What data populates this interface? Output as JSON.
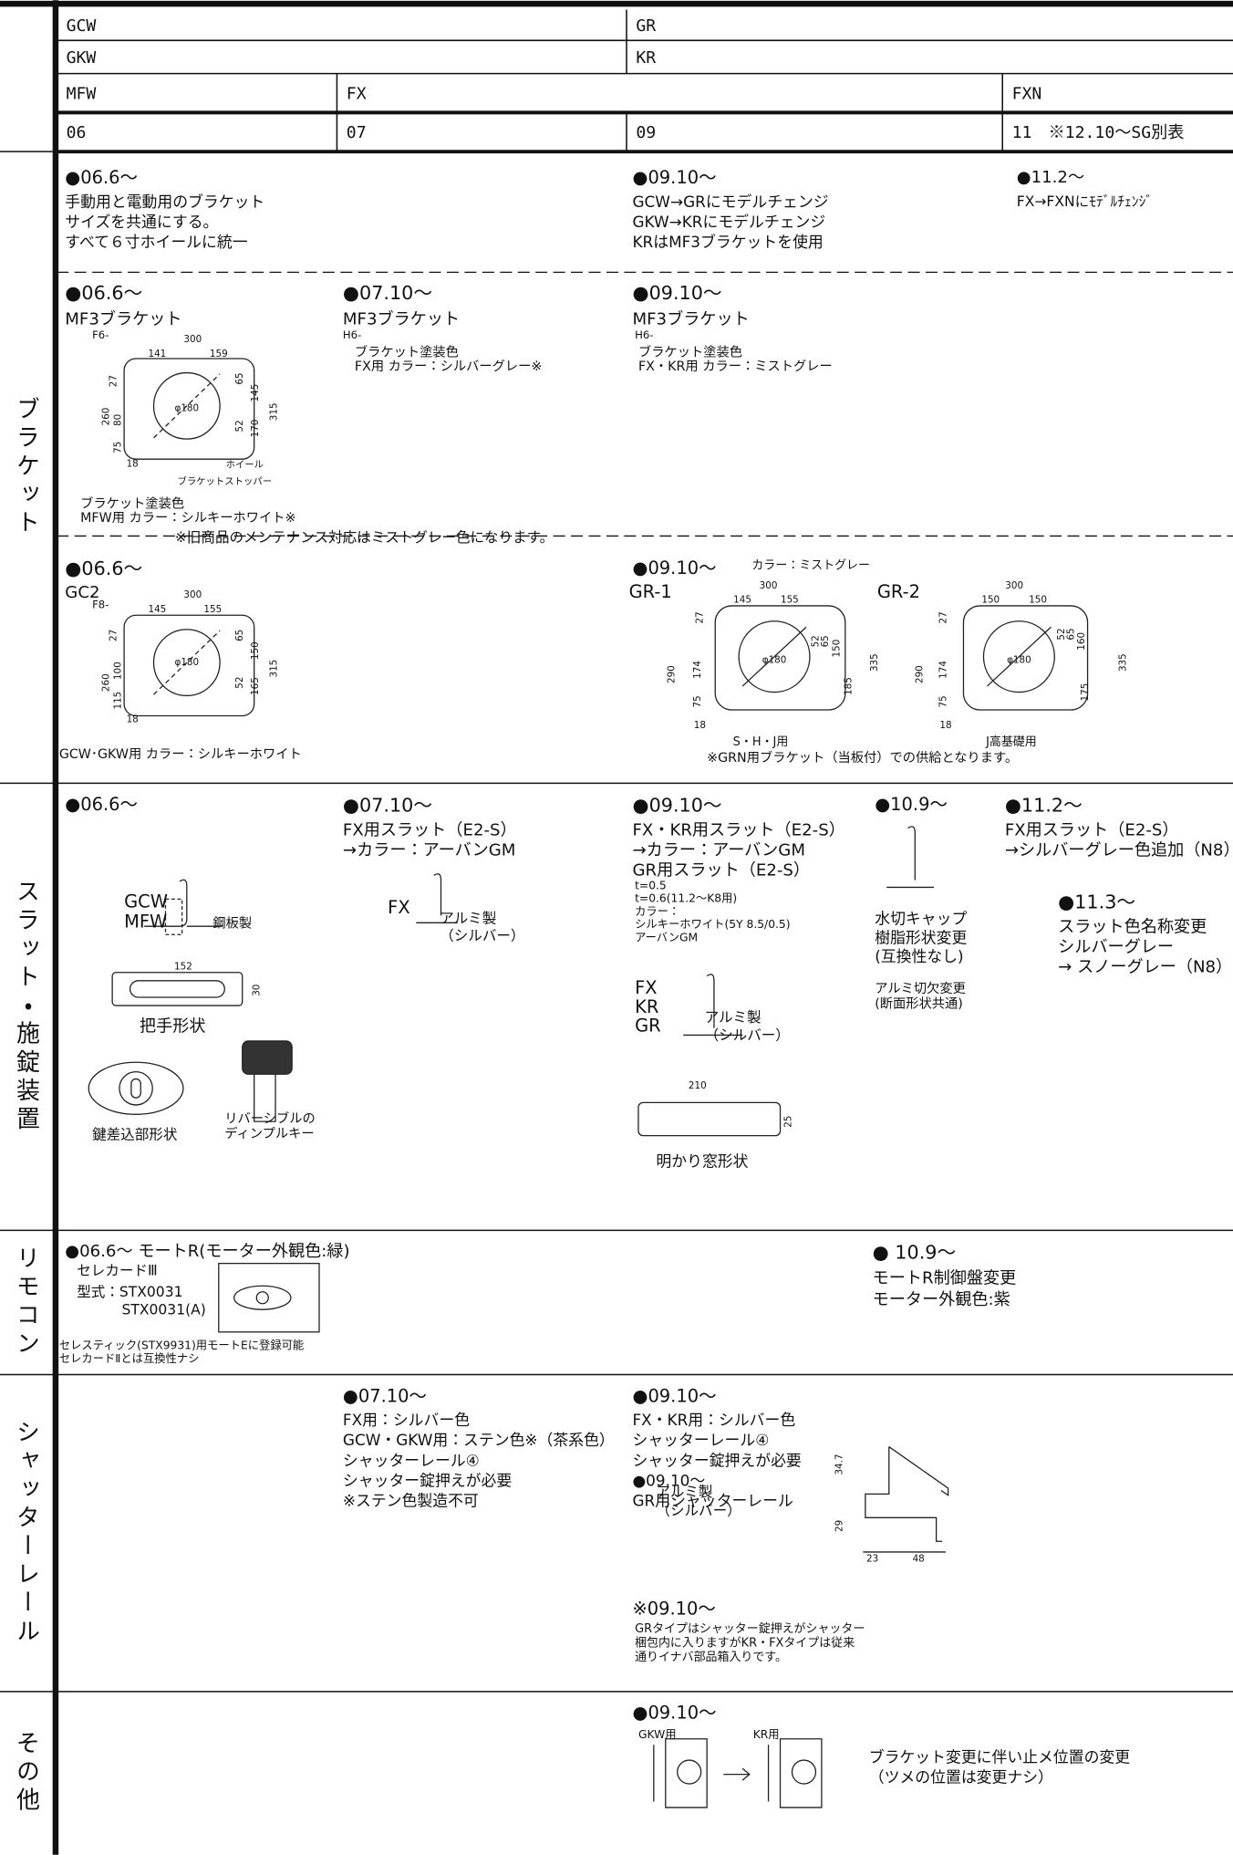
{
  "header": {
    "rows": [
      [
        "GCW",
        "GR"
      ],
      [
        "GKW",
        "KR"
      ],
      [
        "MFW",
        "FX",
        "FXN"
      ],
      [
        "06",
        "07",
        "09",
        "11　※12.10〜SG別表"
      ]
    ]
  },
  "sections": [
    {
      "label": "ブラケット",
      "blocks": [
        {
          "lines": [
            "●06.6〜",
            "手動用と電動用のブラケット",
            "サイズを共通にする。",
            "すべて６寸ホイールに統一"
          ]
        },
        {
          "lines": [
            "●09.10〜",
            "GCW→GRにモデルチェンジ",
            "GKW→KRにモデルチェンジ",
            "KRはMF3ブラケットを使用"
          ]
        },
        {
          "lines": [
            "●11.2〜",
            "FX→FXNにﾓﾃﾞﾙﾁｪﾝｼﾞ"
          ]
        },
        {
          "lines": [
            "●06.6〜",
            "MF3ブラケット"
          ]
        },
        {
          "lines": [
            "F6-"
          ]
        },
        {
          "lines": [
            "●07.10〜",
            "MF3ブラケット"
          ]
        },
        {
          "lines": [
            "H6-"
          ]
        },
        {
          "lines": [
            "ブラケット塗装色",
            "FX用 カラー：シルバーグレー※"
          ]
        },
        {
          "lines": [
            "●09.10〜",
            "MF3ブラケット"
          ]
        },
        {
          "lines": [
            "H6-"
          ]
        },
        {
          "lines": [
            "ブラケット塗装色",
            "FX・KR用 カラー：ミストグレー"
          ]
        },
        {
          "lines": [
            "ブラケット塗装色",
            "MFW用 カラー：シルキーホワイト※"
          ]
        },
        {
          "lines": [
            "※旧商品のメンテナンス対応はミストグレー色になります。"
          ]
        },
        {
          "lines": [
            "●06.6〜",
            "GC2"
          ]
        },
        {
          "lines": [
            "F8-"
          ]
        },
        {
          "lines": [
            "GCW･GKW用 カラー：シルキーホワイト"
          ]
        },
        {
          "lines": [
            "●09.10〜"
          ]
        },
        {
          "lines": [
            "カラー：ミストグレー"
          ]
        },
        {
          "lines": [
            "GR-1"
          ]
        },
        {
          "lines": [
            "GR-2"
          ]
        },
        {
          "lines": [
            "S・H・J用"
          ]
        },
        {
          "lines": [
            "J高基礎用"
          ]
        },
        {
          "lines": [
            "※GRN用ブラケット（当板付）での供給となります。"
          ]
        }
      ],
      "diagrams": [
        {
          "dims": [
            "300",
            "141",
            "159",
            "27",
            "65",
            "145",
            "260",
            "80",
            "75",
            "52",
            "170",
            "315",
            "18",
            "φ180",
            "ホイール",
            "ブラケットストッパー"
          ]
        },
        {
          "dims": [
            "300",
            "145",
            "155",
            "27",
            "65",
            "150",
            "260",
            "100",
            "115",
            "52",
            "165",
            "315",
            "18",
            "φ180"
          ]
        },
        {
          "dims": [
            "300",
            "145",
            "155",
            "27",
            "52",
            "65",
            "150",
            "290",
            "174",
            "185",
            "335",
            "75",
            "18",
            "φ180"
          ]
        },
        {
          "dims": [
            "300",
            "150",
            "150",
            "27",
            "52",
            "65",
            "160",
            "290",
            "174",
            "175",
            "335",
            "75",
            "18",
            "φ180"
          ]
        }
      ]
    },
    {
      "label": "スラット・施錠装置",
      "blocks": [
        {
          "lines": [
            "●06.6〜"
          ]
        },
        {
          "lines": [
            "GCW",
            "MFW"
          ]
        },
        {
          "lines": [
            "鋼板製"
          ]
        },
        {
          "lines": [
            "把手形状"
          ]
        },
        {
          "lines": [
            "鍵差込部形状"
          ]
        },
        {
          "lines": [
            "リバーシブルの",
            "ディンプルキー"
          ]
        },
        {
          "lines": [
            "●07.10〜",
            "FX用スラット（E2-S）",
            "→カラー：アーバンGM"
          ]
        },
        {
          "lines": [
            "FX"
          ]
        },
        {
          "lines": [
            "アルミ製",
            "（シルバー）"
          ]
        },
        {
          "lines": [
            "●09.10〜",
            "FX・KR用スラット（E2-S）",
            "→カラー：アーバンGM",
            "GR用スラット（E2-S）"
          ]
        },
        {
          "lines": [
            "t=0.5",
            "t=0.6(11.2〜K8用)",
            "カラー：",
            "シルキーホワイト(5Y 8.5/0.5)",
            "アーバンGM"
          ]
        },
        {
          "lines": [
            "FX",
            "KR",
            "GR"
          ]
        },
        {
          "lines": [
            "アルミ製",
            "（シルバー）"
          ]
        },
        {
          "lines": [
            "明かり窓形状"
          ]
        },
        {
          "lines": [
            "●10.9〜"
          ]
        },
        {
          "lines": [
            "水切キャップ",
            "樹脂形状変更",
            "(互換性なし)"
          ]
        },
        {
          "lines": [
            "アルミ切欠変更",
            "(断面形状共通)"
          ]
        },
        {
          "lines": [
            "●11.2〜",
            "FX用スラット（E2-S）",
            "→シルバーグレー色追加（N8）"
          ]
        },
        {
          "lines": [
            "●11.3〜",
            "スラット色名称変更",
            "シルバーグレー",
            "→ スノーグレー（N8）"
          ]
        }
      ],
      "diagrams": [
        {
          "dims": [
            "152",
            "30"
          ]
        },
        {
          "dims": [
            "210",
            "25"
          ]
        }
      ]
    },
    {
      "label": "リモコン",
      "blocks": [
        {
          "lines": [
            "●06.6〜 モートR(モーター外観色:緑)"
          ]
        },
        {
          "lines": [
            "セレカードⅢ"
          ]
        },
        {
          "lines": [
            "型式：STX0031"
          ]
        },
        {
          "lines": [
            "STX0031(A)"
          ]
        },
        {
          "lines": [
            "セレスティック(STX9931)用モートEに登録可能",
            "セレカードⅡとは互換性ナシ"
          ]
        },
        {
          "lines": [
            "● 10.9〜",
            "モートR制御盤変更",
            "モーター外観色:紫"
          ]
        }
      ],
      "diagrams": []
    },
    {
      "label": "シャッターレール",
      "blocks": [
        {
          "lines": [
            "●07.10〜",
            "FX用：シルバー色",
            "GCW・GKW用：ステン色※（茶系色）",
            "シャッターレール④",
            "シャッター錠押えが必要"
          ]
        },
        {
          "lines": [
            "※ステン色製造不可"
          ]
        },
        {
          "lines": [
            "●09.10〜",
            "FX・KR用：シルバー色",
            "シャッターレール④",
            "シャッター錠押えが必要",
            "●09.10〜",
            "GR用シャッターレール"
          ]
        },
        {
          "lines": [
            "アルミ製",
            "（シルバー）"
          ]
        },
        {
          "lines": [
            "※09.10〜"
          ]
        },
        {
          "lines": [
            "GRタイプはシャッター錠押えがシャッター",
            "梱包内に入りますがKR・FXタイプは従来",
            "通りイナバ部品箱入りです。"
          ]
        }
      ],
      "diagrams": [
        {
          "dims": [
            "34.7",
            "29",
            "23",
            "48"
          ]
        }
      ]
    },
    {
      "label": "その他",
      "blocks": [
        {
          "lines": [
            "●09.10〜"
          ]
        },
        {
          "lines": [
            "GKW用"
          ]
        },
        {
          "lines": [
            "KR用"
          ]
        },
        {
          "lines": [
            "ブラケット変更に伴い止メ位置の変更",
            "（ツメの位置は変更ナシ）"
          ]
        }
      ],
      "diagrams": []
    }
  ]
}
